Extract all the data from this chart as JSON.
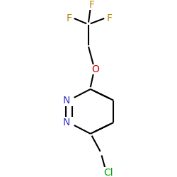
{
  "background_color": "#ffffff",
  "atom_colors": {
    "C": "#000000",
    "N": "#3333cc",
    "O": "#cc0000",
    "F": "#b8860b",
    "Cl": "#00aa00"
  },
  "bond_color": "#000000",
  "bond_width": 1.5,
  "dbo": 0.018,
  "figsize": [
    2.5,
    2.5
  ],
  "dpi": 100,
  "fs": 10
}
